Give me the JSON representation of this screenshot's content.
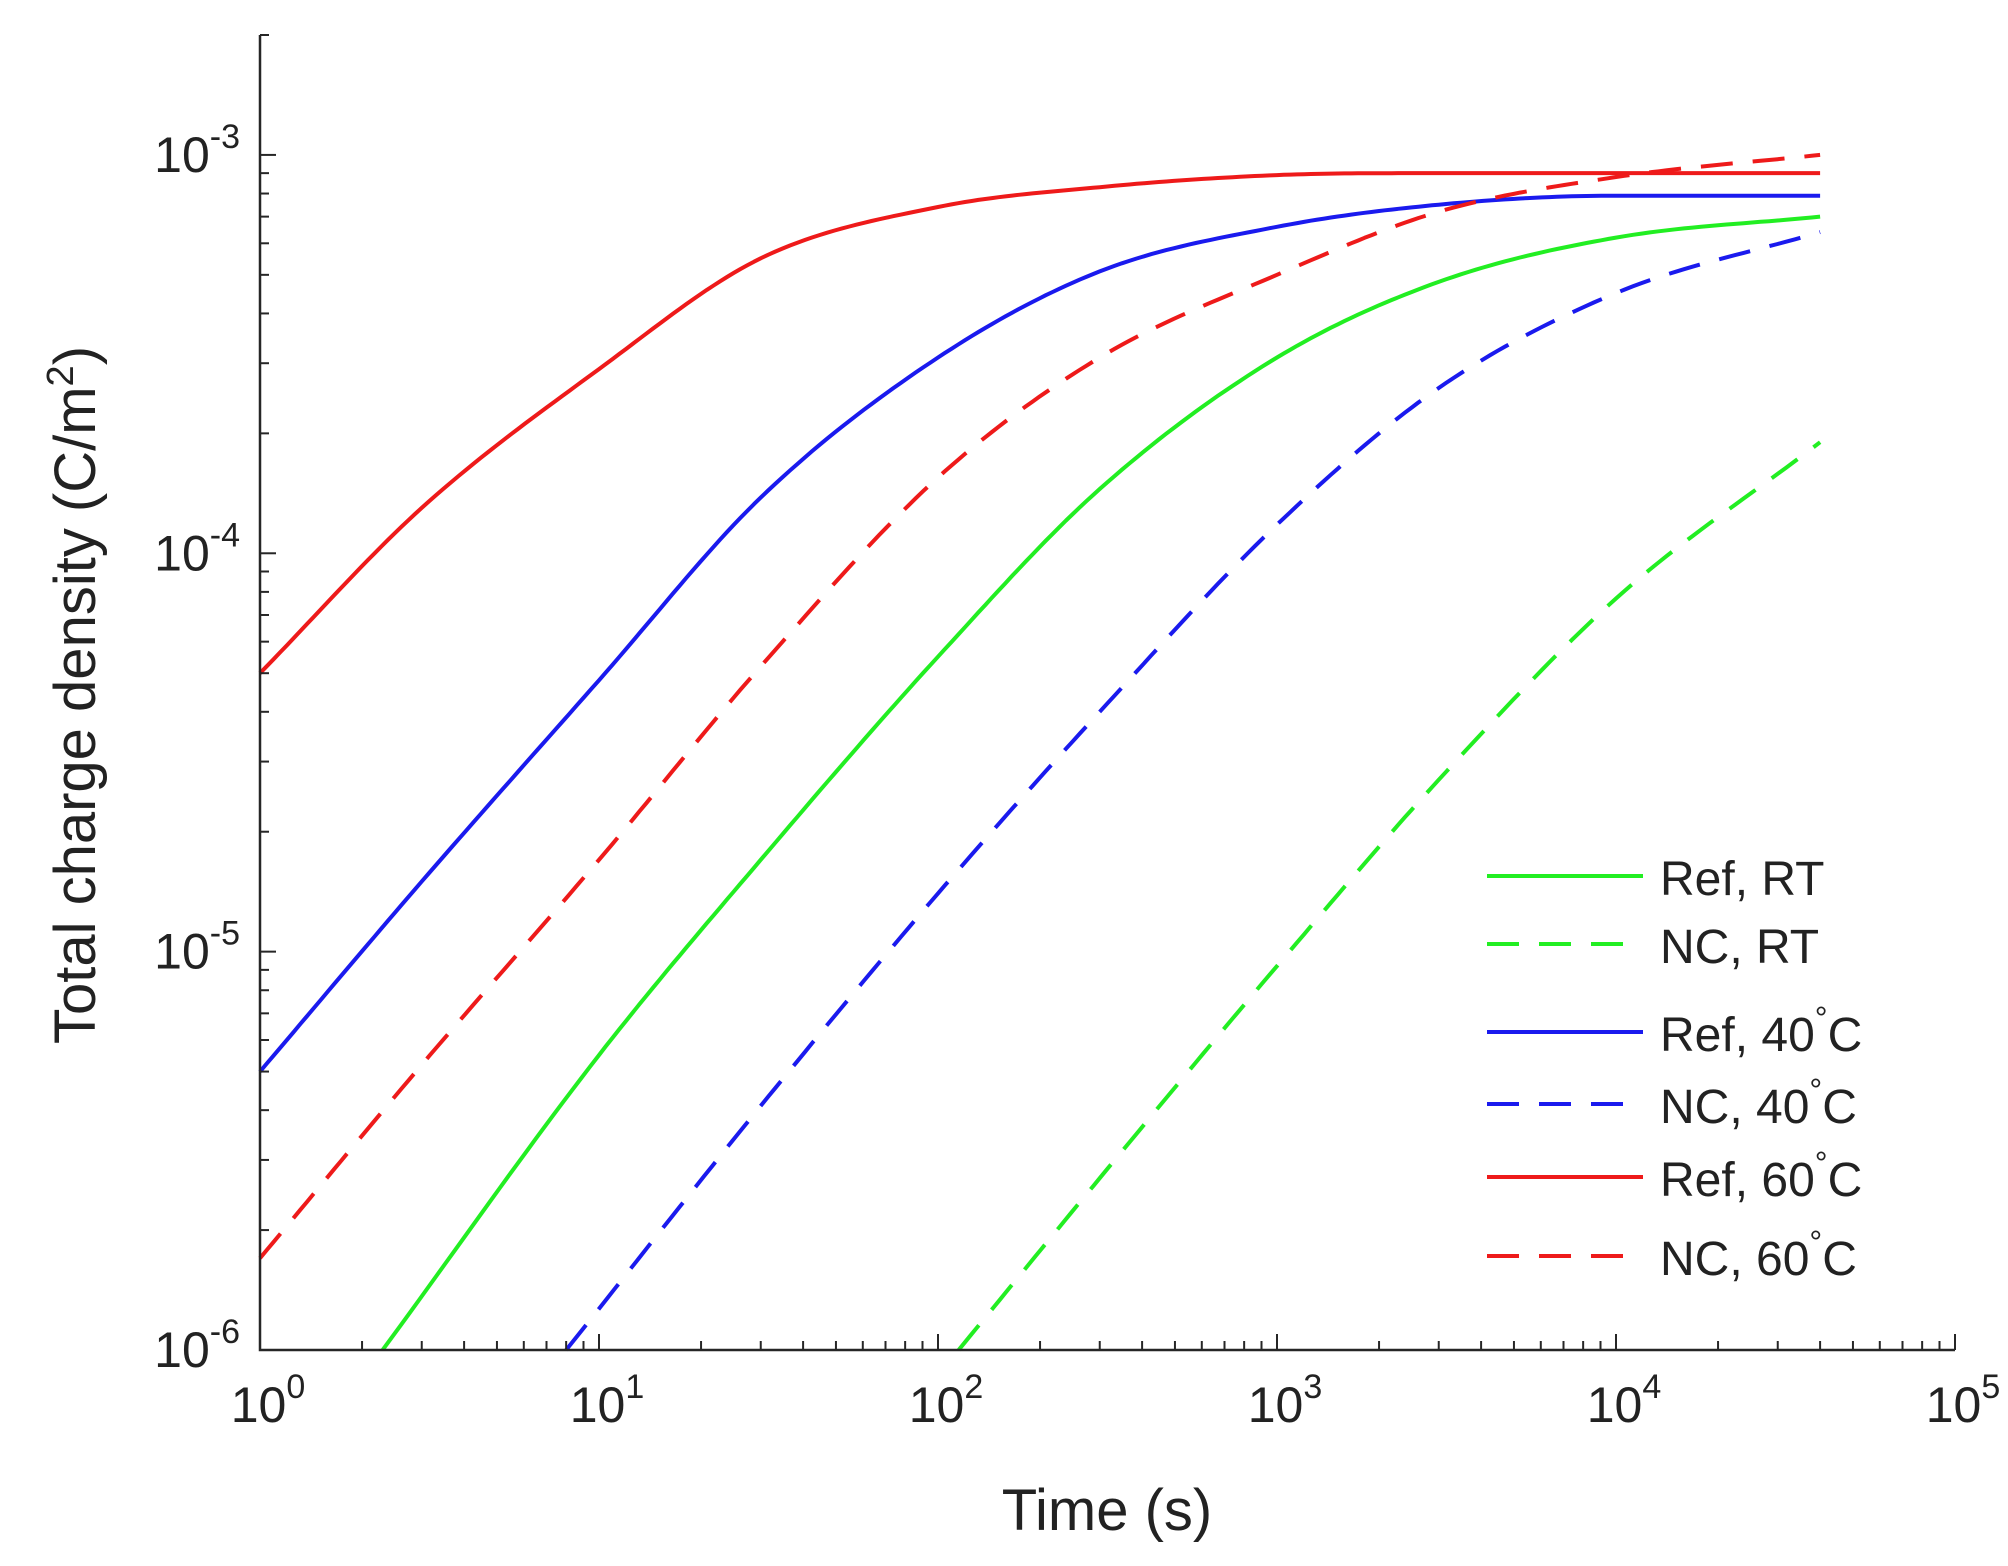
{
  "chart_data": {
    "type": "line",
    "xlabel": "Time (s)",
    "ylabel_main": "Total charge density (C/m",
    "ylabel_sup": "2",
    "ylabel_close": ")",
    "xscale": "log",
    "yscale": "log",
    "xlim": [
      1,
      100000
    ],
    "ylim": [
      1e-06,
      0.002
    ],
    "grid": false,
    "legend_position": "bottom-right",
    "xticks": [
      {
        "base": "10",
        "exp": "0"
      },
      {
        "base": "10",
        "exp": "1"
      },
      {
        "base": "10",
        "exp": "2"
      },
      {
        "base": "10",
        "exp": "3"
      },
      {
        "base": "10",
        "exp": "4"
      },
      {
        "base": "10",
        "exp": "5"
      }
    ],
    "yticks": [
      {
        "base": "10",
        "exp": "-6"
      },
      {
        "base": "10",
        "exp": "-5"
      },
      {
        "base": "10",
        "exp": "-4"
      },
      {
        "base": "10",
        "exp": "-3"
      }
    ],
    "series": [
      {
        "name": "Ref, RT",
        "color": "#22ee22",
        "dash": false,
        "x": [
          2.3,
          10,
          30,
          100,
          300,
          1000,
          3000,
          10000,
          40000
        ],
        "y": [
          1e-06,
          5.5e-06,
          1.7e-05,
          5.5e-05,
          0.000145,
          0.00031,
          0.00048,
          0.00062,
          0.0007
        ]
      },
      {
        "name": "NC, RT",
        "color": "#22ee22",
        "dash": true,
        "x": [
          115,
          300,
          1000,
          3000,
          10000,
          40000
        ],
        "y": [
          1e-06,
          2.7e-06,
          9.2e-06,
          2.7e-05,
          7.7e-05,
          0.00019
        ]
      },
      {
        "name": "Ref, 40",
        "name_deg": "°",
        "name_tail": "C",
        "color": "#1a1aee",
        "dash": false,
        "x": [
          1,
          3,
          10,
          30,
          100,
          300,
          1000,
          3000,
          10000,
          40000
        ],
        "y": [
          5e-06,
          1.5e-05,
          4.8e-05,
          0.000138,
          0.00031,
          0.00051,
          0.00066,
          0.00075,
          0.00079,
          0.00079
        ]
      },
      {
        "name": "NC, 40",
        "name_deg": "°",
        "name_tail": "C",
        "color": "#1a1aee",
        "dash": true,
        "x": [
          8,
          30,
          100,
          300,
          1000,
          3000,
          10000,
          40000
        ],
        "y": [
          1e-06,
          4.1e-06,
          1.4e-05,
          4e-05,
          0.000118,
          0.00026,
          0.00045,
          0.00064
        ]
      },
      {
        "name": "Ref, 60",
        "name_deg": "°",
        "name_tail": "C",
        "color": "#ee1a1a",
        "dash": false,
        "x": [
          1,
          3,
          10,
          30,
          100,
          300,
          1000,
          3000,
          10000,
          40000
        ],
        "y": [
          5e-05,
          0.00013,
          0.00029,
          0.00055,
          0.00074,
          0.00083,
          0.00089,
          0.0009,
          0.0009,
          0.0009
        ]
      },
      {
        "name": "NC, 60",
        "name_deg": "°",
        "name_tail": "C",
        "color": "#ee1a1a",
        "dash": true,
        "x": [
          1,
          3,
          10,
          30,
          100,
          300,
          1000,
          3000,
          10000,
          40000
        ],
        "y": [
          1.7e-06,
          5.2e-06,
          1.7e-05,
          5.2e-05,
          0.000155,
          0.00031,
          0.0005,
          0.00072,
          0.00088,
          0.001
        ]
      }
    ]
  }
}
